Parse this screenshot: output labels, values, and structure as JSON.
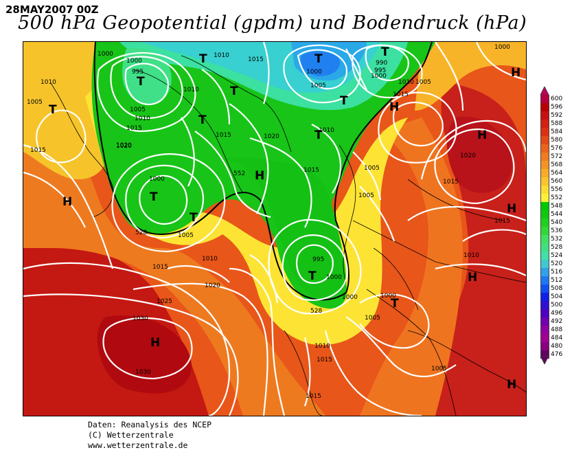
{
  "header": {
    "date": "28MAY2007 00Z",
    "title": "500 hPa Geopotential (gpdm) und Bodendruck (hPa)"
  },
  "legend": {
    "values": [
      "600",
      "596",
      "592",
      "588",
      "584",
      "580",
      "576",
      "572",
      "568",
      "564",
      "560",
      "556",
      "552",
      "548",
      "544",
      "540",
      "536",
      "532",
      "528",
      "524",
      "520",
      "516",
      "512",
      "508",
      "504",
      "500",
      "496",
      "492",
      "488",
      "484",
      "480",
      "476"
    ],
    "colors": [
      "#b40040",
      "#b80000",
      "#c81010",
      "#d42010",
      "#dc3014",
      "#e44a18",
      "#ec641c",
      "#f07c20",
      "#f49424",
      "#f8ac28",
      "#fcc42c",
      "#fcdc30",
      "#fcf034",
      "#00c800",
      "#10c810",
      "#20d020",
      "#30d838",
      "#40e060",
      "#40e080",
      "#40e0a8",
      "#40c8d0",
      "#30a0e8",
      "#2078f0",
      "#1050f0",
      "#1020e8",
      "#3010d0",
      "#5000c0",
      "#7000b0",
      "#9000a0",
      "#a00090",
      "#880080",
      "#600060"
    ]
  },
  "map": {
    "isobar_labels": [
      {
        "text": "1000"
      },
      {
        "text": "1000"
      },
      {
        "text": "995"
      },
      {
        "text": "1010"
      },
      {
        "text": "1005"
      },
      {
        "text": "1010"
      },
      {
        "text": "1015"
      },
      {
        "text": "1015"
      },
      {
        "text": "1020"
      },
      {
        "text": "1005"
      },
      {
        "text": "1000"
      },
      {
        "text": "1010"
      },
      {
        "text": "1010"
      },
      {
        "text": "1015"
      },
      {
        "text": "1015"
      },
      {
        "text": "1020"
      },
      {
        "text": "1005"
      },
      {
        "text": "1010"
      },
      {
        "text": "1015"
      },
      {
        "text": "1020"
      },
      {
        "text": "1025"
      },
      {
        "text": "1030"
      },
      {
        "text": "1030"
      },
      {
        "text": "1000"
      },
      {
        "text": "1005"
      },
      {
        "text": "990"
      },
      {
        "text": "995"
      },
      {
        "text": "1000"
      },
      {
        "text": "1005"
      },
      {
        "text": "1010"
      },
      {
        "text": "1005"
      },
      {
        "text": "1015"
      },
      {
        "text": "1010"
      },
      {
        "text": "1015"
      },
      {
        "text": "1005"
      },
      {
        "text": "1000"
      },
      {
        "text": "995"
      },
      {
        "text": "1000"
      },
      {
        "text": "1000"
      },
      {
        "text": "1000"
      },
      {
        "text": "1005"
      },
      {
        "text": "1010"
      },
      {
        "text": "1015"
      },
      {
        "text": "1020"
      },
      {
        "text": "1015"
      },
      {
        "text": "1010"
      },
      {
        "text": "1015"
      },
      {
        "text": "1005"
      },
      {
        "text": "1015"
      },
      {
        "text": "1020"
      },
      {
        "text": "552"
      },
      {
        "text": "528"
      },
      {
        "text": "528"
      }
    ],
    "markers": [
      {
        "text": "T"
      },
      {
        "text": "T"
      },
      {
        "text": "T"
      },
      {
        "text": "T"
      },
      {
        "text": "T"
      },
      {
        "text": "T"
      },
      {
        "text": "T"
      },
      {
        "text": "T"
      },
      {
        "text": "T"
      },
      {
        "text": "T"
      },
      {
        "text": "T"
      },
      {
        "text": "T"
      },
      {
        "text": "T"
      },
      {
        "text": "H"
      },
      {
        "text": "H"
      },
      {
        "text": "H"
      },
      {
        "text": "H"
      },
      {
        "text": "H"
      },
      {
        "text": "H"
      },
      {
        "text": "H"
      },
      {
        "text": "H"
      },
      {
        "text": "H"
      }
    ]
  },
  "credits": {
    "line1": "Daten: Reanalysis des NCEP",
    "line2": "(C) Wetterzentrale",
    "line3": "www.wetterzentrale.de"
  }
}
